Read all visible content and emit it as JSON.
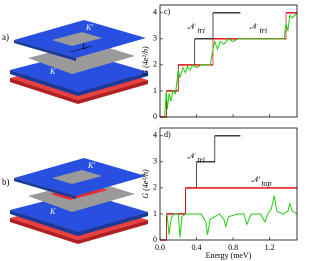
{
  "diagrams": [
    {
      "label": "a)",
      "texts": [
        "K′",
        "L",
        "K"
      ]
    },
    {
      "label": "b)",
      "texts": [
        "K′",
        "K"
      ]
    }
  ],
  "chart_data": [
    {
      "type": "line",
      "panel": "c)",
      "y_label": "G (4e²/h)",
      "xlim": [
        0,
        1.5
      ],
      "ylim": [
        0,
        4.3
      ],
      "xticks": [
        {
          "value": 0,
          "label": "0.0"
        },
        0.4,
        0.8,
        1.2
      ],
      "yticks": [
        0,
        1,
        2,
        3,
        4
      ],
      "show_xtick_labels": false,
      "annotations": [
        {
          "text": "𝒩",
          "sub": "tri"
        },
        {
          "text": "𝒩",
          "sub": "tri"
        }
      ],
      "series": [
        {
          "style": "step",
          "color": "#000000",
          "edges": [
            0,
            0.07,
            0.2,
            0.38,
            0.58,
            0.88
          ],
          "values": [
            0,
            1,
            2,
            3,
            4
          ]
        },
        {
          "style": "step",
          "color": "#e00000",
          "edges": [
            0,
            0.07,
            0.2,
            0.58,
            1.38,
            1.5
          ],
          "values": [
            0,
            1,
            2,
            3,
            4
          ]
        },
        {
          "style": "line",
          "color": "#22cc11",
          "x": [
            0.05,
            0.07,
            0.08,
            0.1,
            0.12,
            0.14,
            0.17,
            0.2,
            0.22,
            0.25,
            0.28,
            0.3,
            0.33,
            0.36,
            0.4,
            0.45,
            0.5,
            0.55,
            0.58,
            0.6,
            0.63,
            0.66,
            0.7,
            0.75,
            0.8,
            0.85,
            0.9,
            0.95,
            1.0,
            1.1,
            1.2,
            1.3,
            1.36,
            1.38,
            1.4,
            1.42,
            1.45,
            1.5
          ],
          "values": [
            0,
            1,
            0.3,
            0.9,
            0.6,
            1.0,
            0.9,
            1.8,
            1.5,
            1.9,
            1.7,
            1.95,
            1.8,
            2.0,
            1.9,
            2.0,
            2.0,
            2.0,
            2.6,
            2.9,
            2.6,
            2.9,
            2.8,
            3.0,
            2.9,
            3.0,
            3.0,
            3.0,
            3.0,
            3.0,
            3.0,
            3.0,
            3.0,
            3.6,
            3.3,
            3.9,
            3.8,
            4.0
          ]
        }
      ]
    },
    {
      "type": "line",
      "panel": "d)",
      "y_label": "G (4e²/h)",
      "x_label": "Energy (meV)",
      "xlim": [
        0,
        1.5
      ],
      "ylim": [
        0,
        4.3
      ],
      "xticks": [
        {
          "value": 0,
          "label": "0.0"
        },
        0.4,
        0.8,
        1.2
      ],
      "yticks": [
        0,
        1,
        2,
        3,
        4
      ],
      "show_xtick_labels": true,
      "annotations": [
        {
          "text": "𝒩",
          "sub": "tri"
        },
        {
          "text": "𝒩′",
          "sub": "top"
        }
      ],
      "series": [
        {
          "style": "step",
          "color": "#000000",
          "edges": [
            0,
            0.07,
            0.28,
            0.4,
            0.6,
            0.88
          ],
          "values": [
            0,
            1,
            2,
            3,
            4
          ]
        },
        {
          "style": "step",
          "color": "#e00000",
          "edges": [
            0,
            0.07,
            0.28,
            1.5
          ],
          "values": [
            0,
            1,
            2
          ]
        },
        {
          "style": "line",
          "color": "#22cc11",
          "x": [
            0.07,
            0.08,
            0.1,
            0.12,
            0.15,
            0.2,
            0.22,
            0.24,
            0.28,
            0.35,
            0.45,
            0.5,
            0.52,
            0.55,
            0.65,
            0.7,
            0.72,
            0.75,
            0.85,
            0.92,
            0.95,
            1.0,
            1.1,
            1.15,
            1.18,
            1.22,
            1.25,
            1.28,
            1.35,
            1.4,
            1.42,
            1.45,
            1.5
          ],
          "values": [
            1,
            0.9,
            0.2,
            0.8,
            1.0,
            1.0,
            0.1,
            0.9,
            1.0,
            1.0,
            1.0,
            0.7,
            0.2,
            0.8,
            1.0,
            0.8,
            0.5,
            0.9,
            1.0,
            1.0,
            0.6,
            1.0,
            1.0,
            0.7,
            1.0,
            1.2,
            1.7,
            1.1,
            1.0,
            1.1,
            1.4,
            1.1,
            1.0
          ]
        }
      ]
    }
  ]
}
